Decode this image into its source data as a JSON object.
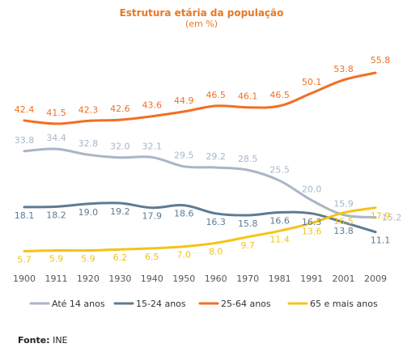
{
  "chart_data": {
    "type": "line",
    "title": "Estrutura etária da população",
    "subtitle": "(em %)",
    "categories": [
      "1900",
      "1911",
      "1920",
      "1930",
      "1940",
      "1950",
      "1960",
      "1970",
      "1981",
      "1991",
      "2001",
      "2009"
    ],
    "series": [
      {
        "name": "Até 14 anos",
        "color": "#a9b6c6",
        "values": [
          33.8,
          34.4,
          32.8,
          32.0,
          32.1,
          29.5,
          29.2,
          28.5,
          25.5,
          20.0,
          15.9,
          15.2
        ]
      },
      {
        "name": "15-24 anos",
        "color": "#5e7b92",
        "values": [
          18.1,
          18.2,
          19.0,
          19.2,
          17.9,
          18.6,
          16.3,
          15.8,
          16.6,
          16.3,
          13.8,
          11.1
        ]
      },
      {
        "name": "25-64 anos",
        "color": "#f26f21",
        "values": [
          42.4,
          41.5,
          42.3,
          42.6,
          43.6,
          44.9,
          46.5,
          46.1,
          46.5,
          50.1,
          53.8,
          55.8
        ]
      },
      {
        "name": "65 e mais anos",
        "color": "#f5c318",
        "values": [
          5.7,
          5.9,
          5.9,
          6.2,
          6.5,
          7.0,
          8.0,
          9.7,
          11.4,
          13.6,
          16.5,
          17.9
        ]
      }
    ],
    "grid": false,
    "legend": "bottom"
  },
  "source": {
    "label": "Fonte:",
    "value": "INE"
  }
}
